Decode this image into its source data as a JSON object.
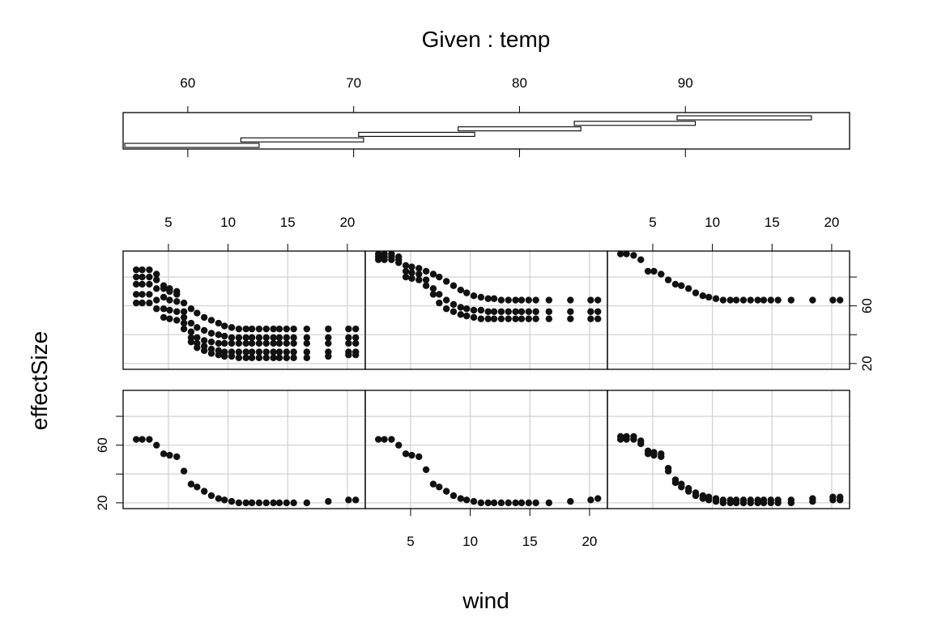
{
  "chart_data": {
    "type": "scatter",
    "kind": "coplot",
    "title": "Given : temp",
    "xlabel": "wind",
    "ylabel": "effectSize",
    "given": {
      "variable": "temp",
      "xlim": [
        56.1,
        99.9
      ],
      "ticks": [
        60,
        70,
        80,
        90
      ],
      "tick_labels": [
        "60",
        "70",
        "80",
        "90"
      ],
      "intervals": [
        [
          56.2,
          64.3
        ],
        [
          63.2,
          70.6
        ],
        [
          70.3,
          77.3
        ],
        [
          76.3,
          83.7
        ],
        [
          83.3,
          90.6
        ],
        [
          89.5,
          97.6
        ]
      ]
    },
    "x_axis": {
      "xlim": [
        1.2,
        21.5
      ],
      "ticks": [
        5,
        10,
        15,
        20
      ],
      "tick_labels": [
        "5",
        "10",
        "15",
        "20"
      ]
    },
    "y_axis": {
      "ylim": [
        16,
        98
      ],
      "ticks": [
        20,
        40,
        60,
        80
      ],
      "tick_labels": [
        "20",
        "",
        "60",
        ""
      ]
    },
    "grid": true,
    "wind_values": [
      2.3,
      2.8,
      3.4,
      4.0,
      4.6,
      5.1,
      5.7,
      6.3,
      6.9,
      7.4,
      8.0,
      8.6,
      9.2,
      9.7,
      10.3,
      10.9,
      11.5,
      12.0,
      12.6,
      13.2,
      13.8,
      14.3,
      14.9,
      15.5,
      16.6,
      18.4,
      20.1,
      20.7
    ],
    "panels": [
      {
        "panel": 1,
        "series": [
          {
            "curve": [
              85,
              85,
              85,
              82,
              72,
              70,
              68,
              62,
              58,
              55,
              52,
              50,
              48,
              46,
              45,
              44,
              44,
              44,
              44,
              44,
              44,
              44,
              44,
              44,
              44,
              44,
              44,
              44
            ]
          },
          {
            "curve": [
              80,
              80,
              80,
              78,
              74,
              72,
              70,
              56,
              48,
              45,
              43,
              41,
              40,
              39,
              38,
              38,
              38,
              38,
              38,
              38,
              38,
              38,
              38,
              38,
              38,
              38,
              38,
              38
            ]
          },
          {
            "curve": [
              75,
              75,
              75,
              72,
              66,
              64,
              63,
              52,
              42,
              38,
              36,
              35,
              34,
              34,
              34,
              34,
              34,
              34,
              34,
              34,
              34,
              34,
              34,
              34,
              34,
              34,
              34,
              34
            ]
          },
          {
            "curve": [
              68,
              68,
              68,
              64,
              58,
              57,
              56,
              48,
              38,
              34,
              32,
              30,
              29,
              28,
              28,
              28,
              28,
              28,
              28,
              28,
              28,
              28,
              28,
              28,
              28,
              28,
              28,
              28
            ]
          },
          {
            "curve": [
              62,
              62,
              62,
              58,
              52,
              51,
              50,
              44,
              35,
              31,
              29,
              27,
              26,
              25,
              25,
              24,
              24,
              24,
              24,
              24,
              24,
              24,
              24,
              24,
              24,
              25,
              26,
              26
            ]
          }
        ]
      },
      {
        "panel": 2,
        "series": [
          {
            "curve": [
              96,
              96,
              96,
              94,
              88,
              87,
              86,
              84,
              82,
              80,
              77,
              74,
              71,
              69,
              67,
              66,
              65,
              65,
              64,
              64,
              64,
              64,
              64,
              64,
              64,
              64,
              64,
              64
            ]
          },
          {
            "curve": [
              94,
              94,
              94,
              92,
              84,
              83,
              82,
              78,
              72,
              68,
              64,
              61,
              59,
              58,
              57,
              57,
              56,
              56,
              56,
              56,
              56,
              56,
              56,
              56,
              56,
              56,
              56,
              56
            ]
          },
          {
            "curve": [
              92,
              92,
              92,
              90,
              80,
              79,
              78,
              74,
              68,
              62,
              58,
              56,
              54,
              53,
              52,
              51,
              51,
              51,
              51,
              51,
              51,
              51,
              51,
              51,
              51,
              51,
              51,
              51
            ]
          }
        ]
      },
      {
        "panel": 3,
        "series": [
          {
            "curve": [
              96,
              96,
              95,
              92,
              84,
              84,
              82,
              78,
              75,
              74,
              72,
              69,
              67,
              66,
              65,
              64,
              64,
              64,
              64,
              64,
              64,
              64,
              64,
              64,
              64,
              64,
              64,
              64
            ]
          }
        ]
      },
      {
        "panel": 4,
        "series": [
          {
            "curve": [
              64,
              64,
              64,
              60,
              54,
              53,
              52,
              42,
              33,
              31,
              28,
              25,
              23,
              22,
              21,
              20,
              20,
              20,
              20,
              20,
              20,
              20,
              20,
              20,
              20,
              21,
              22,
              22
            ]
          }
        ]
      },
      {
        "panel": 5,
        "series": [
          {
            "curve": [
              64,
              64,
              64,
              60,
              54,
              53,
              52,
              43,
              33,
              31,
              28,
              25,
              23,
              22,
              21,
              20,
              20,
              20,
              20,
              20,
              20,
              20,
              20,
              20,
              20,
              21,
              22,
              23
            ]
          }
        ]
      },
      {
        "panel": 6,
        "series": [
          {
            "curve": [
              66,
              66,
              66,
              63,
              56,
              55,
              54,
              44,
              36,
              33,
              30,
              27,
              25,
              24,
              23,
              22,
              22,
              22,
              22,
              22,
              22,
              22,
              22,
              22,
              22,
              23,
              24,
              24
            ]
          },
          {
            "curve": [
              64,
              64,
              64,
              61,
              54,
              53,
              52,
              42,
              34,
              31,
              28,
              25,
              23,
              22,
              21,
              20,
              20,
              20,
              20,
              20,
              20,
              20,
              20,
              20,
              20,
              21,
              22,
              22
            ]
          }
        ]
      }
    ]
  }
}
